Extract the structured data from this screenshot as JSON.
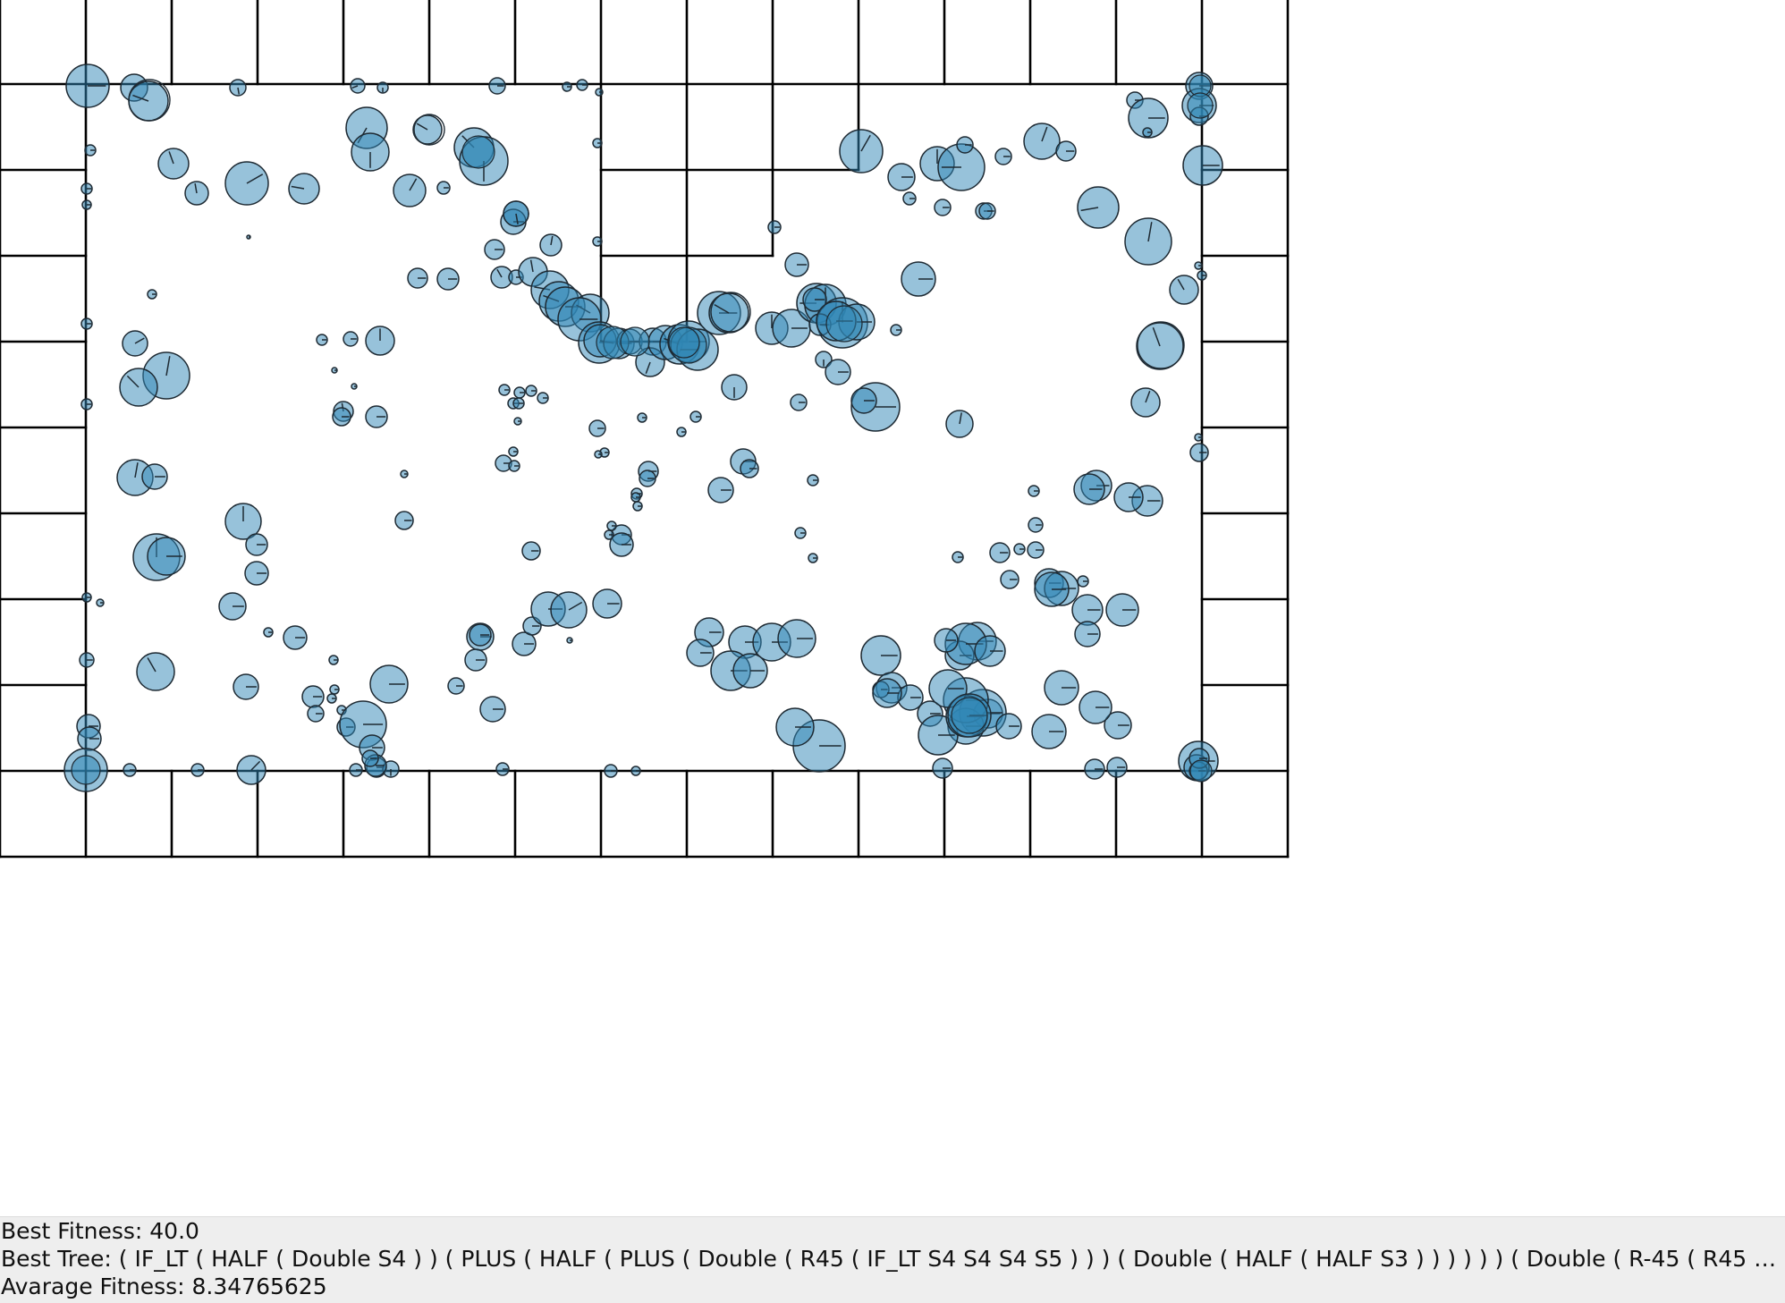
{
  "status": {
    "best_fitness_label": "Best Fitness:",
    "best_fitness_value": "40.0",
    "best_tree_label": "Best Tree:",
    "best_tree_value": "( IF_LT ( HALF ( Double S4 ) ) ( PLUS ( HALF ( PLUS ( Double ( R45 ( IF_LT S4 S4 S4 S5 ) ) ) ( Double ( HALF ( HALF S3 ) ) ) ) ) ) ( Double ( R-45 ( R45 ( R-...",
    "avg_fitness_label": "Avarage Fitness:",
    "avg_fitness_value": "8.34765625"
  },
  "colors": {
    "agent_fill": "#2f86b5",
    "agent_stroke": "#1e2a33",
    "wall": "#000000",
    "background": "#ffffff",
    "panel": "#eeeeee"
  }
}
